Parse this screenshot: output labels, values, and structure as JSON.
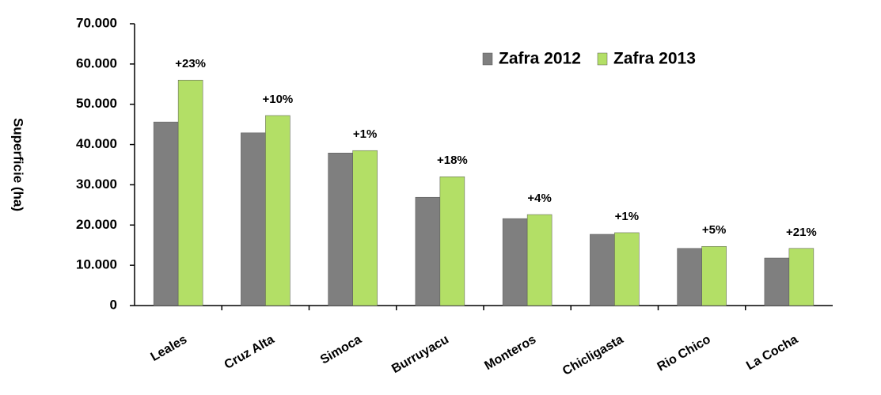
{
  "chart_data": {
    "type": "bar",
    "ylabel": "Superficie (ha)",
    "categories": [
      "Leales",
      "Cruz Alta",
      "Simoca",
      "Burruyacu",
      "Monteros",
      "Chicligasta",
      "Rio Chico",
      "La Cocha"
    ],
    "series": [
      {
        "name": "Zafra 2012",
        "color": "#7f7f7f",
        "values": [
          45600,
          42900,
          37900,
          26900,
          21600,
          17700,
          14200,
          11800
        ]
      },
      {
        "name": "Zafra 2013",
        "color": "#b3df66",
        "values": [
          56000,
          47200,
          38500,
          32000,
          22600,
          18100,
          14700,
          14200
        ]
      }
    ],
    "annotations": [
      "+23%",
      "+10%",
      "+1%",
      "+18%",
      "+4%",
      "+1%",
      "+5%",
      "+21%"
    ],
    "ylim": [
      0,
      70000
    ],
    "yticks": [
      0,
      {
        "value": 10000,
        "label": "10.000"
      },
      {
        "value": 20000,
        "label": "20.000"
      },
      {
        "value": 30000,
        "label": "30.000"
      },
      {
        "value": 40000,
        "label": "40.000"
      },
      {
        "value": 50000,
        "label": "50.000"
      },
      {
        "value": 60000,
        "label": "60.000"
      },
      {
        "value": 70000,
        "label": "70.000"
      }
    ],
    "legend": "top-right",
    "grid": false
  }
}
